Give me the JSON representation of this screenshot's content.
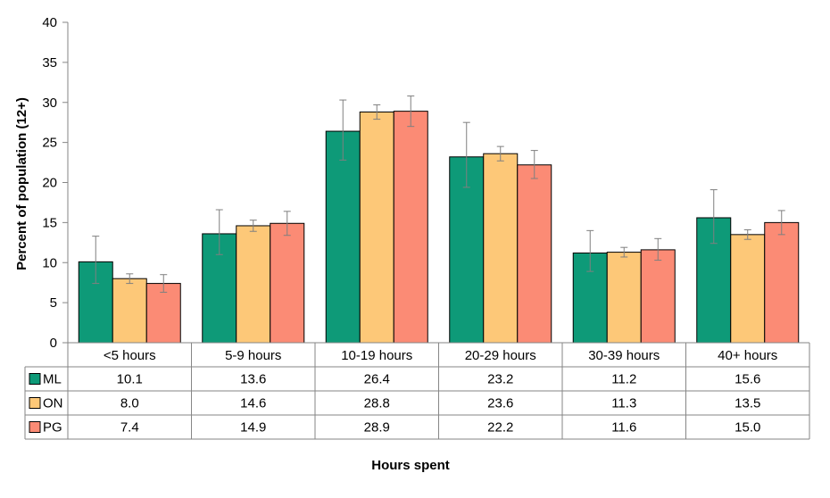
{
  "chart_data": {
    "type": "bar",
    "title": "",
    "xlabel": "Hours spent",
    "ylabel": "Percent of population (12+)",
    "ylim": [
      0,
      40
    ],
    "yticks": [
      0,
      5,
      10,
      15,
      20,
      25,
      30,
      35,
      40
    ],
    "categories": [
      "<5 hours",
      "5-9 hours",
      "10-19 hours",
      "20-29 hours",
      "30-39 hours",
      "40+ hours"
    ],
    "series": [
      {
        "name": "ML",
        "color": "#0e9a78",
        "values": [
          10.1,
          13.6,
          26.4,
          23.2,
          11.2,
          15.6
        ],
        "error_low": [
          7.4,
          11.0,
          22.8,
          19.4,
          8.9,
          12.4
        ],
        "error_high": [
          13.3,
          16.6,
          30.3,
          27.5,
          14.0,
          19.1
        ]
      },
      {
        "name": "ON",
        "color": "#fdc878",
        "values": [
          8.0,
          14.6,
          28.8,
          23.6,
          11.3,
          13.5
        ],
        "error_low": [
          7.4,
          13.9,
          27.9,
          22.7,
          10.7,
          12.9
        ],
        "error_high": [
          8.6,
          15.3,
          29.7,
          24.5,
          11.9,
          14.1
        ]
      },
      {
        "name": "PG",
        "color": "#fb8b75",
        "values": [
          7.4,
          14.9,
          28.9,
          22.2,
          11.6,
          15.0
        ],
        "error_low": [
          6.3,
          13.4,
          27.0,
          20.5,
          10.3,
          13.5
        ],
        "error_high": [
          8.5,
          16.4,
          30.8,
          24.0,
          13.0,
          16.5
        ]
      }
    ],
    "data_table": true,
    "legend": "data-table",
    "grid": false
  }
}
